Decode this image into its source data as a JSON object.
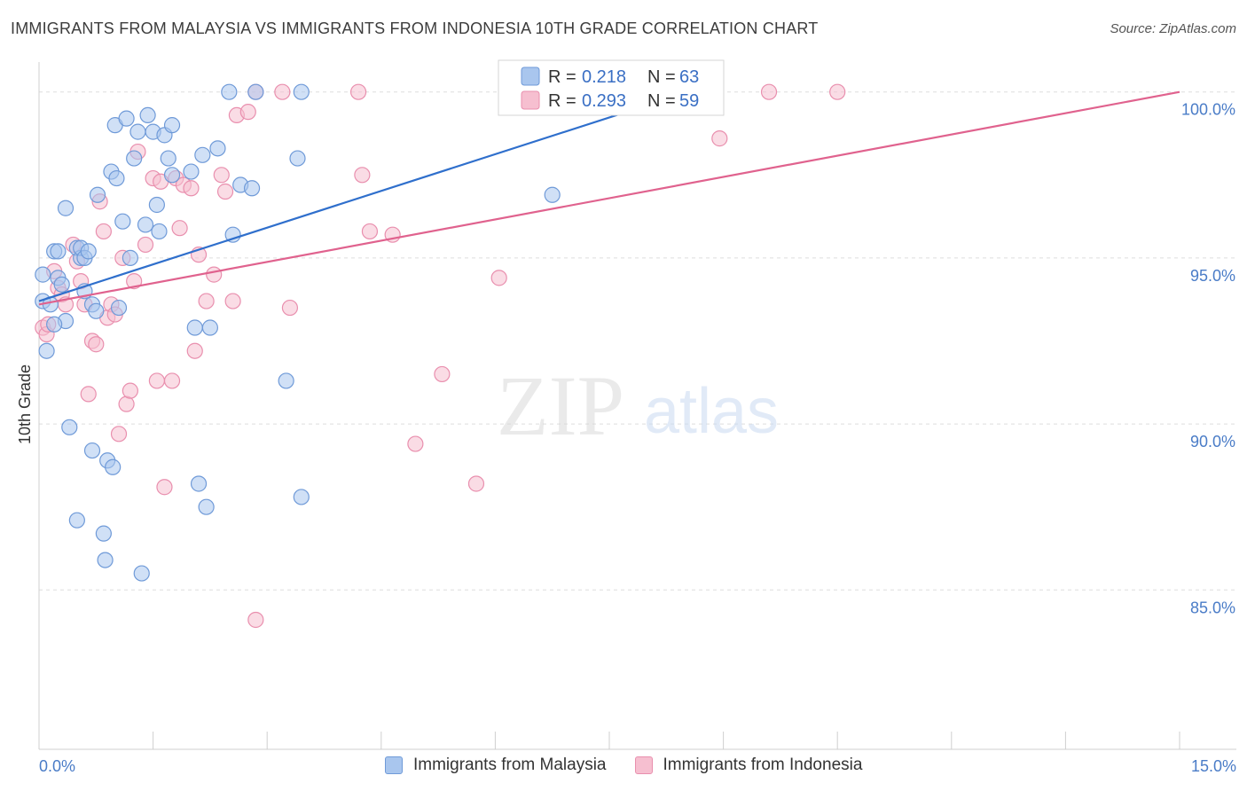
{
  "title": "IMMIGRANTS FROM MALAYSIA VS IMMIGRANTS FROM INDONESIA 10TH GRADE CORRELATION CHART",
  "source": "Source: ZipAtlas.com",
  "watermark": {
    "zip": "ZIP",
    "atlas": "atlas"
  },
  "colors": {
    "blue_fill": "#a9c6ee",
    "blue_stroke": "#6f9ad8",
    "blue_line": "#2f6fcc",
    "pink_fill": "#f6bfd0",
    "pink_stroke": "#e98fae",
    "pink_line": "#e0628e",
    "grid": "#dddddd",
    "tick_label": "#4a7cc7"
  },
  "legend": {
    "rows": [
      {
        "r_label": "R =",
        "r_value": "0.218",
        "n_label": "N =",
        "n_value": "63",
        "color": "blue"
      },
      {
        "r_label": "R =",
        "r_value": "0.293",
        "n_label": "N =",
        "n_value": "59",
        "color": "pink"
      }
    ]
  },
  "bottom_legend": [
    "Immigrants from Malaysia",
    "Immigrants from Indonesia"
  ],
  "chart_data": {
    "type": "scatter",
    "title": "IMMIGRANTS FROM MALAYSIA VS IMMIGRANTS FROM INDONESIA 10TH GRADE CORRELATION CHART",
    "xlabel": "",
    "ylabel": "10th Grade",
    "xlim": [
      0,
      15
    ],
    "ylim": [
      80.2,
      100.9
    ],
    "x_tick_labels": [
      "0.0%",
      "15.0%"
    ],
    "y_ticks": [
      85,
      90,
      95,
      100
    ],
    "y_tick_labels": [
      "85.0%",
      "90.0%",
      "95.0%",
      "100.0%"
    ],
    "grid": true,
    "legend_position": "top-center",
    "series": [
      {
        "name": "Immigrants from Malaysia",
        "color": "blue",
        "trend": {
          "x": [
            0,
            8.0
          ],
          "y": [
            93.7,
            99.6
          ]
        },
        "points": [
          [
            0.05,
            94.5
          ],
          [
            0.1,
            92.2
          ],
          [
            0.05,
            93.7
          ],
          [
            0.15,
            93.6
          ],
          [
            0.2,
            95.2
          ],
          [
            0.25,
            95.2
          ],
          [
            0.25,
            94.4
          ],
          [
            0.3,
            94.2
          ],
          [
            0.35,
            93.1
          ],
          [
            0.35,
            96.5
          ],
          [
            0.4,
            89.9
          ],
          [
            0.5,
            95.3
          ],
          [
            0.5,
            87.1
          ],
          [
            0.55,
            95.0
          ],
          [
            0.55,
            95.3
          ],
          [
            0.6,
            95.0
          ],
          [
            0.6,
            94.0
          ],
          [
            0.65,
            95.2
          ],
          [
            0.7,
            93.6
          ],
          [
            0.7,
            89.2
          ],
          [
            0.75,
            93.4
          ],
          [
            0.77,
            96.9
          ],
          [
            0.85,
            86.7
          ],
          [
            0.87,
            85.9
          ],
          [
            0.9,
            88.9
          ],
          [
            0.95,
            97.6
          ],
          [
            0.97,
            88.7
          ],
          [
            1.0,
            99.0
          ],
          [
            1.02,
            97.4
          ],
          [
            1.05,
            93.5
          ],
          [
            1.1,
            96.1
          ],
          [
            1.15,
            99.2
          ],
          [
            1.2,
            95.0
          ],
          [
            1.25,
            98.0
          ],
          [
            1.3,
            98.8
          ],
          [
            1.35,
            85.5
          ],
          [
            1.4,
            96.0
          ],
          [
            1.43,
            99.3
          ],
          [
            1.5,
            98.8
          ],
          [
            1.55,
            96.6
          ],
          [
            1.58,
            95.8
          ],
          [
            1.65,
            98.7
          ],
          [
            1.7,
            98.0
          ],
          [
            1.75,
            97.5
          ],
          [
            1.75,
            99.0
          ],
          [
            2.0,
            97.6
          ],
          [
            2.05,
            92.9
          ],
          [
            2.1,
            88.2
          ],
          [
            2.15,
            98.1
          ],
          [
            2.2,
            87.5
          ],
          [
            2.25,
            92.9
          ],
          [
            2.35,
            98.3
          ],
          [
            2.5,
            100.0
          ],
          [
            2.55,
            95.7
          ],
          [
            2.65,
            97.2
          ],
          [
            2.8,
            97.1
          ],
          [
            2.85,
            100.0
          ],
          [
            3.25,
            91.3
          ],
          [
            3.4,
            98.0
          ],
          [
            3.45,
            100.0
          ],
          [
            3.45,
            87.8
          ],
          [
            6.75,
            96.9
          ],
          [
            0.2,
            93.0
          ]
        ]
      },
      {
        "name": "Immigrants from Indonesia",
        "color": "pink",
        "trend": {
          "x": [
            0,
            15.0
          ],
          "y": [
            93.6,
            100.0
          ]
        },
        "points": [
          [
            0.05,
            92.9
          ],
          [
            0.1,
            92.7
          ],
          [
            0.12,
            93.0
          ],
          [
            0.2,
            94.6
          ],
          [
            0.25,
            94.1
          ],
          [
            0.3,
            93.9
          ],
          [
            0.35,
            93.6
          ],
          [
            0.45,
            95.4
          ],
          [
            0.5,
            94.9
          ],
          [
            0.55,
            94.3
          ],
          [
            0.6,
            93.6
          ],
          [
            0.65,
            90.9
          ],
          [
            0.7,
            92.5
          ],
          [
            0.75,
            92.4
          ],
          [
            0.8,
            96.7
          ],
          [
            0.85,
            95.8
          ],
          [
            0.9,
            93.2
          ],
          [
            0.95,
            93.6
          ],
          [
            1.0,
            93.3
          ],
          [
            1.05,
            89.7
          ],
          [
            1.1,
            95.0
          ],
          [
            1.15,
            90.6
          ],
          [
            1.2,
            91.0
          ],
          [
            1.25,
            94.3
          ],
          [
            1.3,
            98.2
          ],
          [
            1.4,
            95.4
          ],
          [
            1.5,
            97.4
          ],
          [
            1.55,
            91.3
          ],
          [
            1.6,
            97.3
          ],
          [
            1.65,
            88.1
          ],
          [
            1.75,
            91.3
          ],
          [
            1.8,
            97.4
          ],
          [
            1.85,
            95.9
          ],
          [
            1.9,
            97.2
          ],
          [
            2.0,
            97.1
          ],
          [
            2.05,
            92.2
          ],
          [
            2.1,
            95.1
          ],
          [
            2.2,
            93.7
          ],
          [
            2.3,
            94.5
          ],
          [
            2.4,
            97.5
          ],
          [
            2.45,
            97.0
          ],
          [
            2.55,
            93.7
          ],
          [
            2.6,
            99.3
          ],
          [
            2.75,
            99.4
          ],
          [
            2.85,
            100.0
          ],
          [
            2.85,
            84.1
          ],
          [
            3.2,
            100.0
          ],
          [
            3.3,
            93.5
          ],
          [
            4.2,
            100.0
          ],
          [
            4.25,
            97.5
          ],
          [
            4.35,
            95.8
          ],
          [
            4.65,
            95.7
          ],
          [
            4.95,
            89.4
          ],
          [
            5.3,
            91.5
          ],
          [
            5.75,
            88.2
          ],
          [
            6.05,
            94.4
          ],
          [
            8.95,
            98.6
          ],
          [
            9.6,
            100.0
          ],
          [
            10.5,
            100.0
          ]
        ]
      }
    ]
  }
}
